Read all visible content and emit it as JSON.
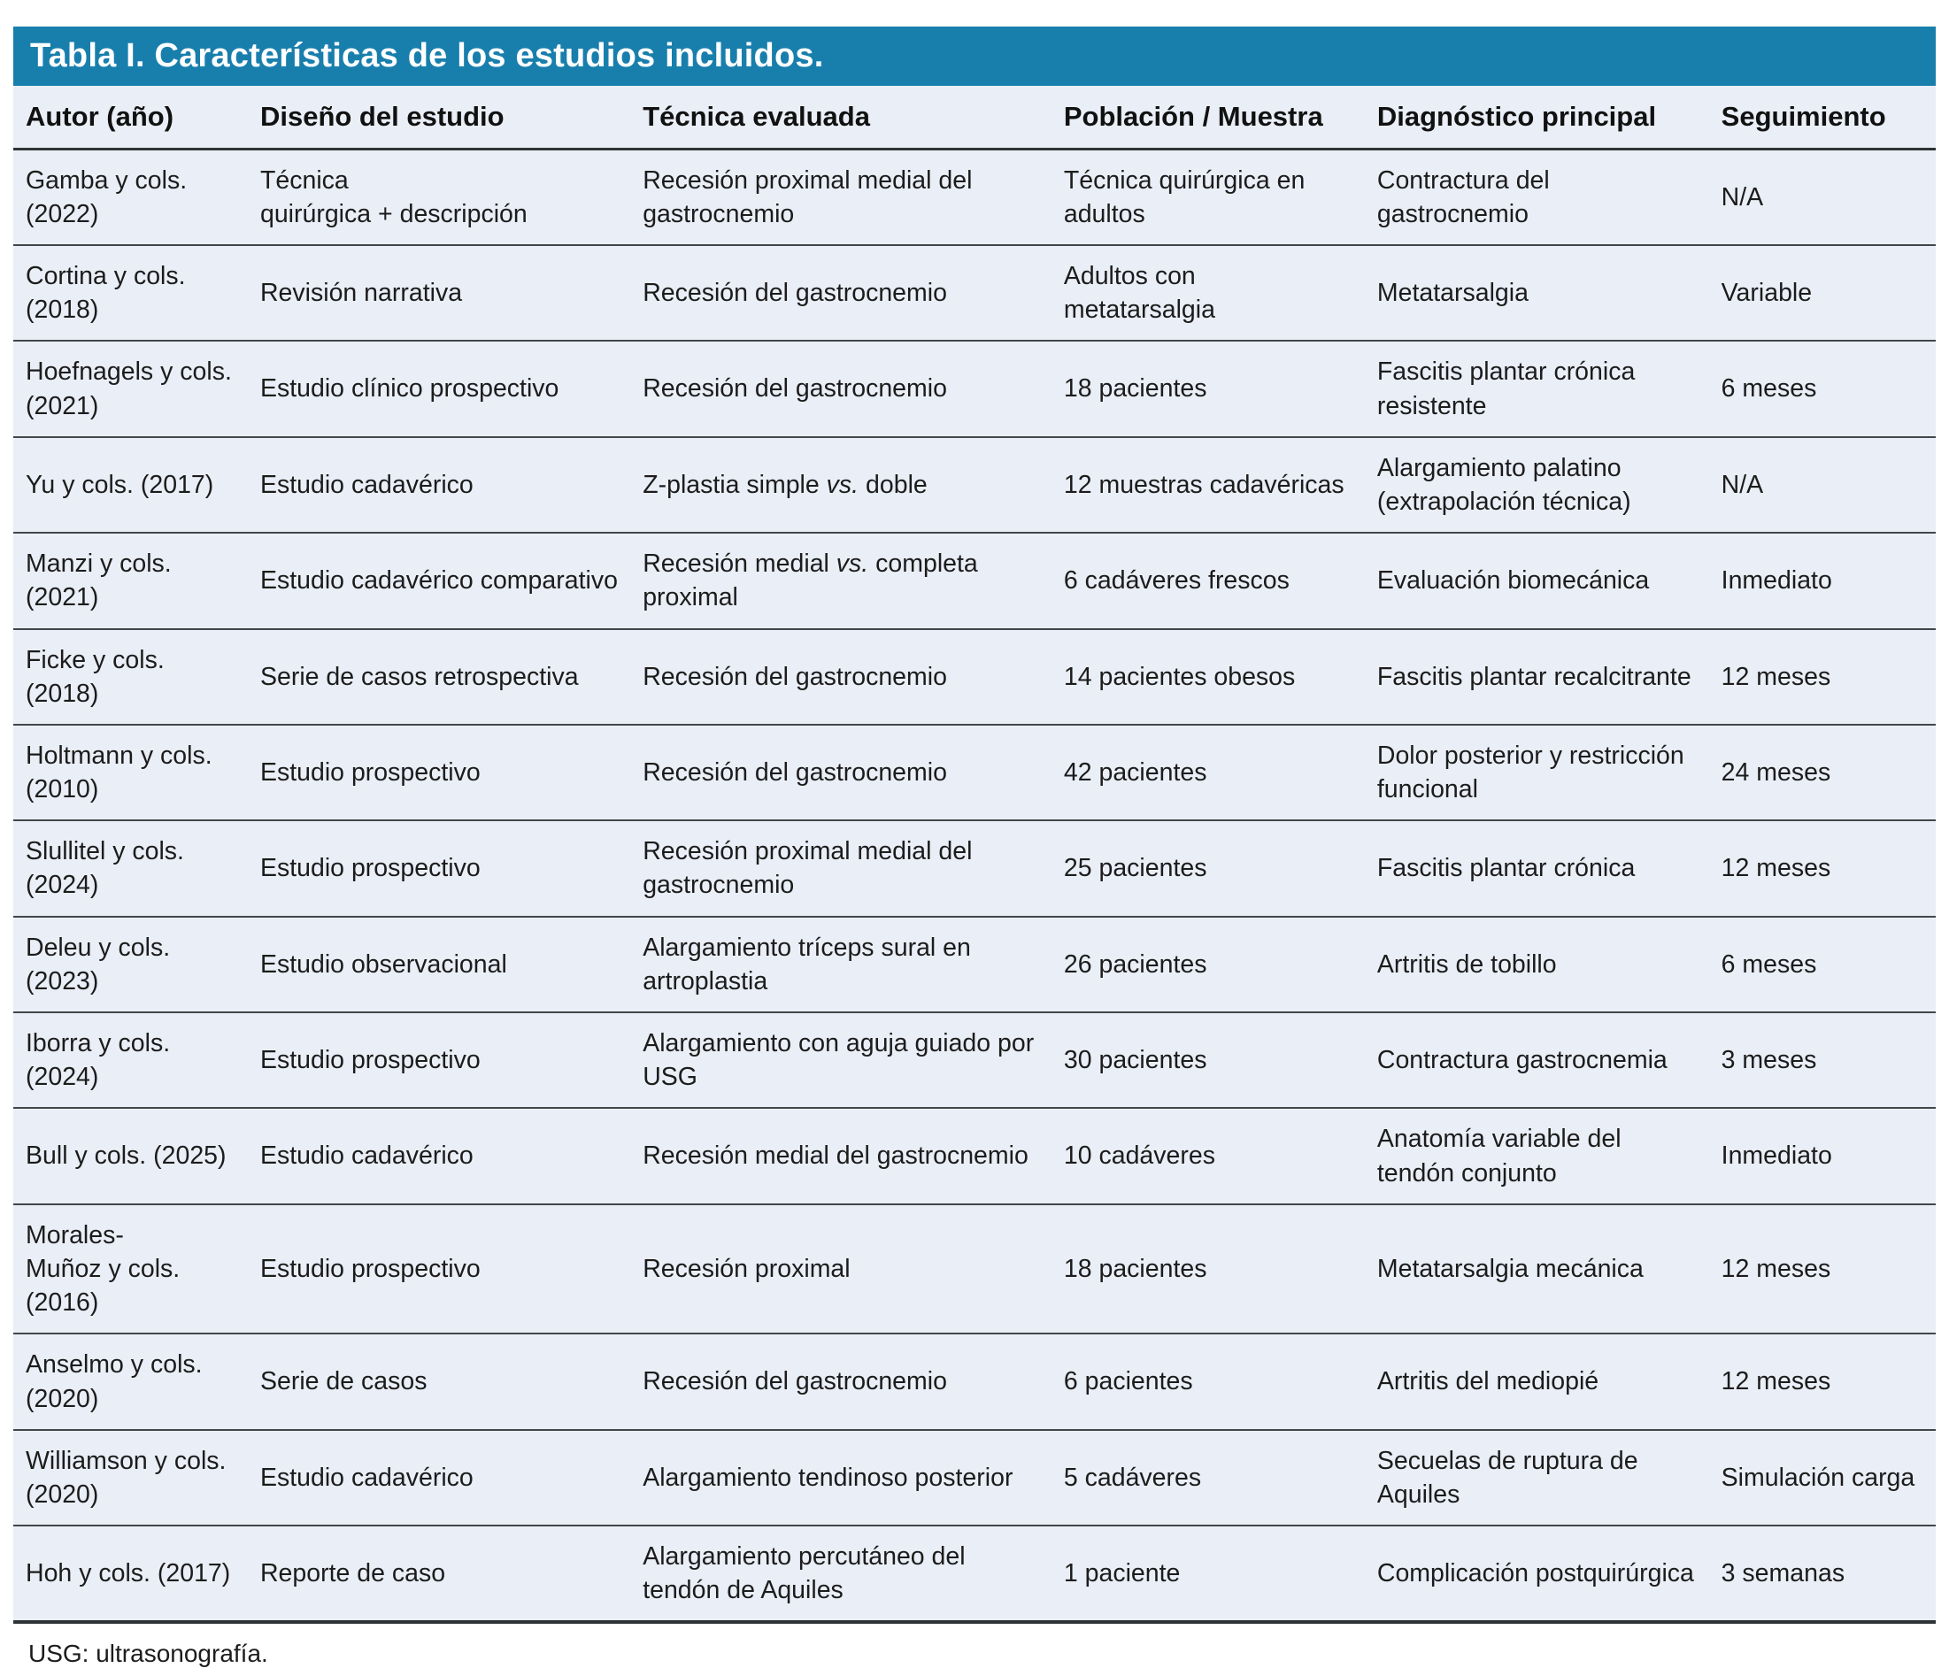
{
  "title": "Tabla I. Características de los estudios incluidos.",
  "footnote": "USG: ultrasonografía.",
  "colors": {
    "title_bar_bg": "#187fad",
    "title_text": "#ffffff",
    "row_bg": "#eaeef6",
    "separator_line": "#40464a",
    "body_text": "#1c1c1c"
  },
  "table": {
    "column_keys": [
      "autor",
      "diseno",
      "tecnica",
      "poblacion",
      "diagnostico",
      "seguimiento"
    ],
    "columns": [
      "Autor (año)",
      "Diseño del estudio",
      "Técnica evaluada",
      "Población / Muestra",
      "Diagnóstico principal",
      "Seguimiento"
    ],
    "rows": [
      {
        "cells": [
          "Gamba y cols. (2022)",
          "Técnica\nquirúrgica + descripción",
          "Recesión proximal medial del gastrocnemio",
          "Técnica quirúrgica en adultos",
          "Contractura del gastrocnemio",
          "N/A"
        ]
      },
      {
        "cells": [
          "Cortina y cols. (2018)",
          "Revisión narrativa",
          "Recesión del gastrocnemio",
          "Adultos con metatarsalgia",
          "Metatarsalgia",
          "Variable"
        ]
      },
      {
        "cells": [
          "Hoefnagels y cols. (2021)",
          "Estudio clínico prospectivo",
          "Recesión del gastrocnemio",
          "18 pacientes",
          "Fascitis plantar crónica resistente",
          "6 meses"
        ]
      },
      {
        "cells": [
          "Yu y cols. (2017)",
          "Estudio cadavérico",
          [
            "Z-plastia simple ",
            {
              "i": "vs."
            },
            " doble"
          ],
          "12 muestras cadavéricas",
          "Alargamiento palatino (extrapolación técnica)",
          "N/A"
        ]
      },
      {
        "cells": [
          "Manzi y cols. (2021)",
          "Estudio cadavérico comparativo",
          [
            "Recesión medial ",
            {
              "i": "vs."
            },
            " completa proximal"
          ],
          "6 cadáveres frescos",
          "Evaluación biomecánica",
          "Inmediato"
        ]
      },
      {
        "cells": [
          "Ficke y cols. (2018)",
          "Serie de casos retrospectiva",
          "Recesión del gastrocnemio",
          "14 pacientes obesos",
          "Fascitis plantar recalcitrante",
          "12 meses"
        ]
      },
      {
        "cells": [
          "Holtmann y cols. (2010)",
          "Estudio prospectivo",
          "Recesión del gastrocnemio",
          "42 pacientes",
          "Dolor posterior y restricción funcional",
          "24 meses"
        ]
      },
      {
        "cells": [
          "Slullitel y cols. (2024)",
          "Estudio prospectivo",
          "Recesión proximal medial del gastrocnemio",
          "25 pacientes",
          "Fascitis plantar crónica",
          "12 meses"
        ]
      },
      {
        "cells": [
          "Deleu y cols. (2023)",
          "Estudio observacional",
          "Alargamiento tríceps sural en artroplastia",
          "26 pacientes",
          "Artritis de tobillo",
          "6 meses"
        ]
      },
      {
        "cells": [
          "Iborra y cols. (2024)",
          "Estudio prospectivo",
          "Alargamiento con aguja guiado por USG",
          "30 pacientes",
          "Contractura gastrocnemia",
          "3 meses"
        ]
      },
      {
        "cells": [
          "Bull y cols. (2025)",
          "Estudio cadavérico",
          "Recesión medial del gastrocnemio",
          "10 cadáveres",
          "Anatomía variable del tendón conjunto",
          "Inmediato"
        ]
      },
      {
        "cells": [
          "Morales-\nMuñoz y cols. (2016)",
          "Estudio prospectivo",
          "Recesión proximal",
          "18 pacientes",
          "Metatarsalgia mecánica",
          "12 meses"
        ]
      },
      {
        "cells": [
          "Anselmo y cols. (2020)",
          "Serie de casos",
          "Recesión del gastrocnemio",
          "6 pacientes",
          "Artritis del mediopié",
          "12 meses"
        ]
      },
      {
        "cells": [
          "Williamson y cols. (2020)",
          "Estudio cadavérico",
          "Alargamiento tendinoso posterior",
          "5 cadáveres",
          "Secuelas de ruptura de Aquiles",
          "Simulación carga"
        ]
      },
      {
        "cells": [
          "Hoh y cols. (2017)",
          "Reporte de caso",
          "Alargamiento percutáneo del tendón de Aquiles",
          "1 paciente",
          "Complicación postquirúrgica",
          "3 semanas"
        ]
      }
    ]
  }
}
